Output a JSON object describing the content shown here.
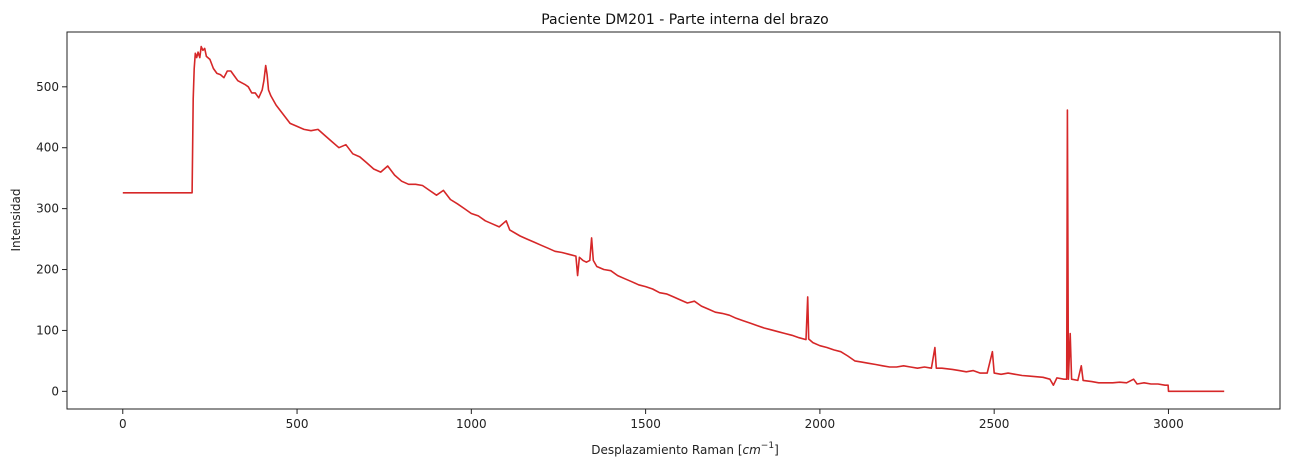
{
  "chart_data": {
    "type": "line",
    "title": "Paciente DM201 - Parte interna del brazo",
    "xlabel_prefix": "Desplazamiento Raman [",
    "xlabel_unit_base": "cm",
    "xlabel_unit_exp": "−1",
    "xlabel_suffix": "]",
    "ylabel": "Intensidad",
    "xlim": [
      -160,
      3320
    ],
    "ylim": [
      -29,
      590
    ],
    "xticks": [
      0,
      500,
      1000,
      1500,
      2000,
      2500,
      3000
    ],
    "yticks": [
      0,
      100,
      200,
      300,
      400,
      500
    ],
    "grid": false,
    "series": [
      {
        "color": "#d62728",
        "points": [
          [
            0,
            326
          ],
          [
            198,
            326
          ],
          [
            199,
            326
          ],
          [
            202,
            480
          ],
          [
            205,
            530
          ],
          [
            208,
            555
          ],
          [
            212,
            548
          ],
          [
            216,
            557
          ],
          [
            221,
            548
          ],
          [
            225,
            566
          ],
          [
            230,
            560
          ],
          [
            235,
            563
          ],
          [
            240,
            550
          ],
          [
            250,
            545
          ],
          [
            260,
            530
          ],
          [
            270,
            522
          ],
          [
            280,
            520
          ],
          [
            290,
            515
          ],
          [
            300,
            526
          ],
          [
            310,
            526
          ],
          [
            320,
            518
          ],
          [
            330,
            510
          ],
          [
            340,
            507
          ],
          [
            350,
            504
          ],
          [
            360,
            500
          ],
          [
            370,
            490
          ],
          [
            380,
            490
          ],
          [
            390,
            482
          ],
          [
            400,
            495
          ],
          [
            405,
            510
          ],
          [
            410,
            535
          ],
          [
            414,
            520
          ],
          [
            418,
            495
          ],
          [
            425,
            485
          ],
          [
            440,
            470
          ],
          [
            460,
            455
          ],
          [
            480,
            440
          ],
          [
            500,
            435
          ],
          [
            520,
            430
          ],
          [
            540,
            428
          ],
          [
            560,
            430
          ],
          [
            580,
            420
          ],
          [
            600,
            410
          ],
          [
            620,
            400
          ],
          [
            640,
            405
          ],
          [
            660,
            390
          ],
          [
            680,
            385
          ],
          [
            700,
            375
          ],
          [
            720,
            365
          ],
          [
            740,
            360
          ],
          [
            760,
            370
          ],
          [
            780,
            355
          ],
          [
            800,
            345
          ],
          [
            820,
            340
          ],
          [
            840,
            340
          ],
          [
            860,
            338
          ],
          [
            880,
            330
          ],
          [
            900,
            322
          ],
          [
            920,
            330
          ],
          [
            940,
            315
          ],
          [
            960,
            308
          ],
          [
            980,
            300
          ],
          [
            1000,
            292
          ],
          [
            1020,
            288
          ],
          [
            1040,
            280
          ],
          [
            1060,
            275
          ],
          [
            1080,
            270
          ],
          [
            1100,
            280
          ],
          [
            1110,
            265
          ],
          [
            1140,
            255
          ],
          [
            1160,
            250
          ],
          [
            1180,
            245
          ],
          [
            1200,
            240
          ],
          [
            1220,
            235
          ],
          [
            1240,
            230
          ],
          [
            1260,
            228
          ],
          [
            1280,
            225
          ],
          [
            1300,
            222
          ],
          [
            1305,
            190
          ],
          [
            1310,
            220
          ],
          [
            1320,
            215
          ],
          [
            1330,
            212
          ],
          [
            1340,
            215
          ],
          [
            1345,
            252
          ],
          [
            1350,
            215
          ],
          [
            1360,
            205
          ],
          [
            1380,
            200
          ],
          [
            1400,
            198
          ],
          [
            1420,
            190
          ],
          [
            1440,
            185
          ],
          [
            1460,
            180
          ],
          [
            1480,
            175
          ],
          [
            1500,
            172
          ],
          [
            1520,
            168
          ],
          [
            1540,
            162
          ],
          [
            1560,
            160
          ],
          [
            1580,
            155
          ],
          [
            1600,
            150
          ],
          [
            1620,
            145
          ],
          [
            1640,
            148
          ],
          [
            1660,
            140
          ],
          [
            1680,
            135
          ],
          [
            1700,
            130
          ],
          [
            1720,
            128
          ],
          [
            1740,
            125
          ],
          [
            1760,
            120
          ],
          [
            1780,
            116
          ],
          [
            1800,
            112
          ],
          [
            1820,
            108
          ],
          [
            1840,
            104
          ],
          [
            1860,
            101
          ],
          [
            1880,
            98
          ],
          [
            1900,
            95
          ],
          [
            1920,
            92
          ],
          [
            1940,
            88
          ],
          [
            1960,
            85
          ],
          [
            1965,
            155
          ],
          [
            1968,
            86
          ],
          [
            1980,
            80
          ],
          [
            2000,
            75
          ],
          [
            2020,
            72
          ],
          [
            2040,
            68
          ],
          [
            2060,
            65
          ],
          [
            2080,
            58
          ],
          [
            2100,
            50
          ],
          [
            2120,
            48
          ],
          [
            2140,
            46
          ],
          [
            2160,
            44
          ],
          [
            2180,
            42
          ],
          [
            2200,
            40
          ],
          [
            2220,
            40
          ],
          [
            2240,
            42
          ],
          [
            2260,
            40
          ],
          [
            2280,
            38
          ],
          [
            2300,
            40
          ],
          [
            2320,
            38
          ],
          [
            2330,
            72
          ],
          [
            2334,
            38
          ],
          [
            2350,
            38
          ],
          [
            2380,
            36
          ],
          [
            2400,
            34
          ],
          [
            2420,
            32
          ],
          [
            2440,
            34
          ],
          [
            2460,
            30
          ],
          [
            2480,
            30
          ],
          [
            2495,
            65
          ],
          [
            2500,
            30
          ],
          [
            2520,
            28
          ],
          [
            2540,
            30
          ],
          [
            2560,
            28
          ],
          [
            2580,
            26
          ],
          [
            2600,
            25
          ],
          [
            2620,
            24
          ],
          [
            2640,
            23
          ],
          [
            2660,
            20
          ],
          [
            2670,
            10
          ],
          [
            2680,
            22
          ],
          [
            2700,
            20
          ],
          [
            2708,
            20
          ],
          [
            2710,
            462
          ],
          [
            2713,
            20
          ],
          [
            2718,
            95
          ],
          [
            2722,
            20
          ],
          [
            2740,
            18
          ],
          [
            2750,
            42
          ],
          [
            2755,
            18
          ],
          [
            2780,
            16
          ],
          [
            2800,
            14
          ],
          [
            2820,
            14
          ],
          [
            2840,
            14
          ],
          [
            2860,
            15
          ],
          [
            2880,
            14
          ],
          [
            2900,
            20
          ],
          [
            2910,
            12
          ],
          [
            2930,
            14
          ],
          [
            2950,
            12
          ],
          [
            2970,
            12
          ],
          [
            2990,
            10
          ],
          [
            2999,
            10
          ],
          [
            3000,
            0
          ],
          [
            3160,
            0
          ]
        ]
      }
    ]
  }
}
